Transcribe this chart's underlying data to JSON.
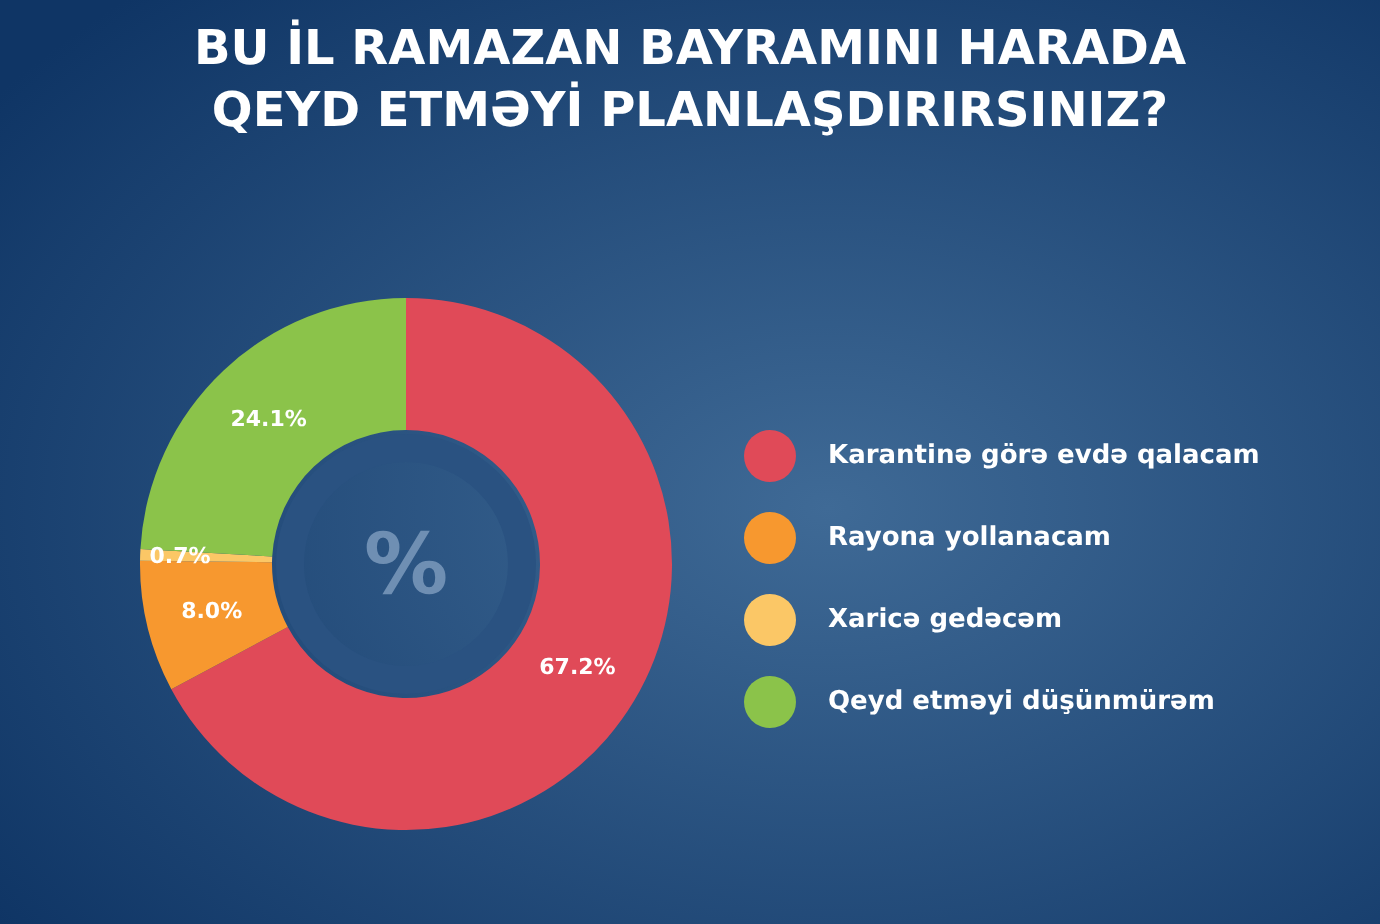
{
  "chart_data": {
    "type": "donut",
    "title": "BU İL RAMAZAN BAYRAMINI HARADA\nQEYD ETMƏYİ PLANLAŞDIRIRSINIZ?",
    "categories": [
      "Karantinə görə evdə qalacam",
      "Rayona yollanacam",
      "Xaricə gedəcəm",
      "Qeyd etməyi düşünmürəm"
    ],
    "values": [
      67.2,
      8.0,
      0.7,
      24.1
    ],
    "colors": [
      "#e04a58",
      "#f7982f",
      "#fbc766",
      "#8bc34a"
    ],
    "value_labels": [
      "67.2%",
      "8.0%",
      "0.7%",
      "24.1%"
    ],
    "annotations": [
      "%"
    ],
    "legend": "right"
  }
}
